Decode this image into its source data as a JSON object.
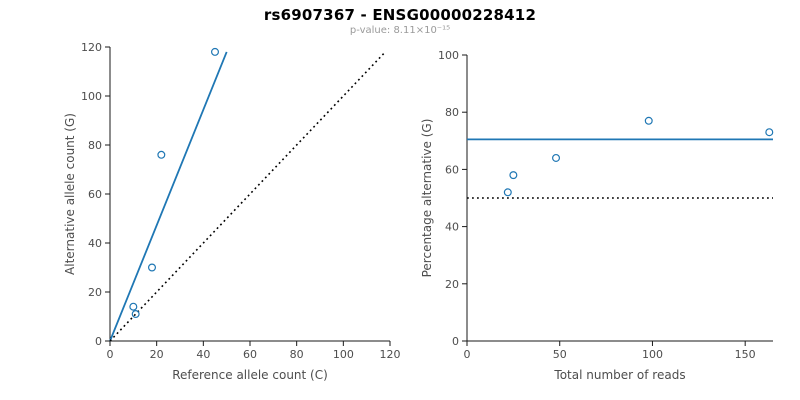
{
  "header": {
    "title": "rs6907367 - ENSG00000228412",
    "subtitle": "p-value: 8.11×10⁻¹⁵"
  },
  "accent_color": "#1f77b4",
  "chart_data": [
    {
      "type": "scatter",
      "title": "",
      "xlabel": "Reference allele count (C)",
      "ylabel": "Alternative allele count (G)",
      "xlim": [
        0,
        120
      ],
      "ylim": [
        0,
        120
      ],
      "xticks": [
        0,
        20,
        40,
        60,
        80,
        100,
        120
      ],
      "yticks": [
        0,
        20,
        40,
        60,
        80,
        100,
        120
      ],
      "grid": false,
      "legend": "none",
      "point_color": "#1f77b4",
      "points": [
        [
          10,
          14
        ],
        [
          11,
          11
        ],
        [
          18,
          30
        ],
        [
          22,
          76
        ],
        [
          45,
          118
        ]
      ],
      "lines": [
        {
          "name": "fit-line",
          "style": "solid",
          "color": "#1f77b4",
          "points": [
            [
              0,
              0
            ],
            [
              50,
              118
            ]
          ]
        },
        {
          "name": "identity-line",
          "style": "dotted",
          "color": "#000000",
          "points": [
            [
              0,
              0
            ],
            [
              118,
              118
            ]
          ]
        }
      ]
    },
    {
      "type": "scatter",
      "title": "",
      "xlabel": "Total number of reads",
      "ylabel": "Percentage alternative (G)",
      "xlim": [
        0,
        165
      ],
      "ylim": [
        0,
        100
      ],
      "xticks": [
        0,
        50,
        100,
        150
      ],
      "yticks": [
        0,
        20,
        40,
        60,
        80,
        100
      ],
      "grid": false,
      "legend": "none",
      "point_color": "#1f77b4",
      "points": [
        [
          22,
          52
        ],
        [
          25,
          58
        ],
        [
          48,
          64
        ],
        [
          98,
          77
        ],
        [
          163,
          73
        ]
      ],
      "lines": [
        {
          "name": "mean-percentage-line",
          "style": "solid",
          "color": "#1f77b4",
          "points": [
            [
              0,
              70.5
            ],
            [
              165,
              70.5
            ]
          ]
        },
        {
          "name": "fifty-percent-line",
          "style": "dotted",
          "color": "#000000",
          "points": [
            [
              0,
              50
            ],
            [
              165,
              50
            ]
          ]
        }
      ]
    }
  ]
}
